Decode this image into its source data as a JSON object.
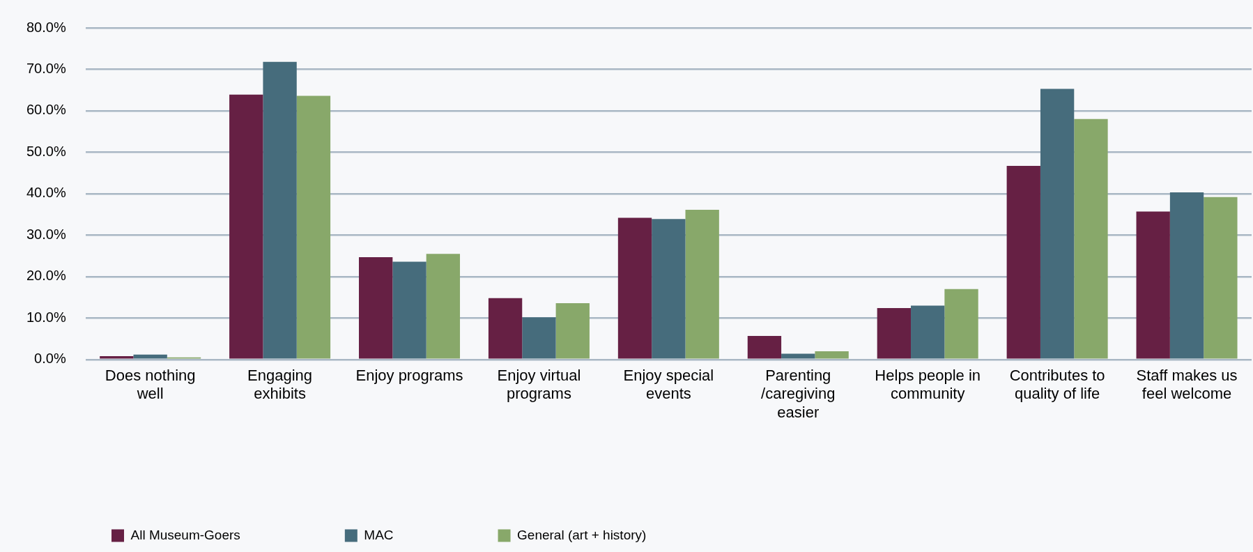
{
  "chart_data": {
    "type": "bar",
    "categories": [
      "Does nothing well",
      "Engaging exhibits",
      "Enjoy programs",
      "Enjoy virtual programs",
      "Enjoy special events",
      "Parenting /caregiving easier",
      "Helps people in community",
      "Contributes to quality of life",
      "Staff makes us feel welcome"
    ],
    "series": [
      {
        "name": "All Museum-Goers",
        "color": "#662044",
        "values": [
          0.8,
          63.9,
          24.7,
          14.8,
          34.2,
          5.7,
          12.4,
          46.7,
          35.7
        ]
      },
      {
        "name": "MAC",
        "color": "#466c7c",
        "values": [
          1.2,
          71.8,
          23.6,
          10.2,
          33.9,
          1.4,
          13.0,
          65.3,
          40.3
        ]
      },
      {
        "name": "General (art + history)",
        "color": "#88a86a",
        "values": [
          0.5,
          63.6,
          25.5,
          13.6,
          36.1,
          2.0,
          17.0,
          58.0,
          39.2
        ]
      }
    ],
    "ylim": [
      0,
      80
    ],
    "yticks": [
      {
        "value": 0,
        "label": "0.0%"
      },
      {
        "value": 10,
        "label": "10.0%"
      },
      {
        "value": 20,
        "label": "20.0%"
      },
      {
        "value": 30,
        "label": "30.0%"
      },
      {
        "value": 40,
        "label": "40.0%"
      },
      {
        "value": 50,
        "label": "50.0%"
      },
      {
        "value": 60,
        "label": "60.0%"
      },
      {
        "value": 70,
        "label": "70.0%"
      },
      {
        "value": 80,
        "label": "80.0%"
      }
    ],
    "grid": "y",
    "legend": "bottom"
  }
}
